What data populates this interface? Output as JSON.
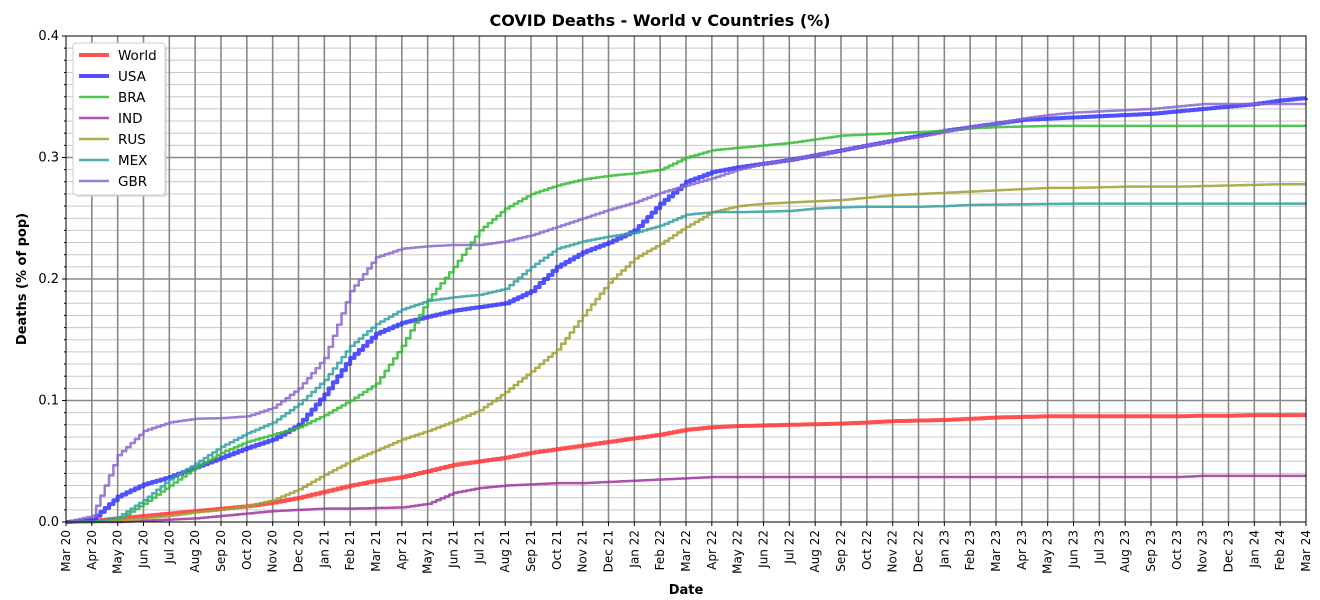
{
  "chart_data": {
    "type": "line",
    "title": "COVID Deaths - World v Countries (%)",
    "xlabel": "Date",
    "ylabel": "Deaths (% of pop)",
    "ylim": [
      0,
      0.4
    ],
    "yticks": [
      "0.0",
      "0.1",
      "0.2",
      "0.3",
      "0.4"
    ],
    "grid": true,
    "legend_position": "top-left",
    "x": [
      "Mar 20",
      "Apr 20",
      "May 20",
      "Jun 20",
      "Jul 20",
      "Aug 20",
      "Sep 20",
      "Oct 20",
      "Nov 20",
      "Dec 20",
      "Jan 21",
      "Feb 21",
      "Mar 21",
      "Apr 21",
      "May 21",
      "Jun 21",
      "Jul 21",
      "Aug 21",
      "Sep 21",
      "Oct 21",
      "Nov 21",
      "Dec 21",
      "Jan 22",
      "Feb 22",
      "Mar 22",
      "Apr 22",
      "May 22",
      "Jun 22",
      "Jul 22",
      "Aug 22",
      "Sep 22",
      "Oct 22",
      "Nov 22",
      "Dec 22",
      "Jan 23",
      "Feb 23",
      "Mar 23",
      "Apr 23",
      "May 23",
      "Jun 23",
      "Jul 23",
      "Aug 23",
      "Sep 23",
      "Oct 23",
      "Nov 23",
      "Dec 23",
      "Jan 24",
      "Feb 24",
      "Mar 24"
    ],
    "series": [
      {
        "name": "World",
        "color": "#ff3333",
        "width": 4,
        "values": [
          0,
          0.001,
          0.003,
          0.005,
          0.007,
          0.009,
          0.011,
          0.013,
          0.016,
          0.02,
          0.025,
          0.03,
          0.034,
          0.037,
          0.042,
          0.047,
          0.05,
          0.053,
          0.057,
          0.06,
          0.063,
          0.066,
          0.069,
          0.072,
          0.076,
          0.078,
          0.079,
          0.0795,
          0.08,
          0.0805,
          0.081,
          0.082,
          0.083,
          0.0835,
          0.084,
          0.085,
          0.086,
          0.0865,
          0.087,
          0.087,
          0.087,
          0.087,
          0.087,
          0.087,
          0.0875,
          0.0875,
          0.088,
          0.088,
          0.088
        ]
      },
      {
        "name": "USA",
        "color": "#3333ff",
        "width": 4,
        "values": [
          0,
          0.002,
          0.021,
          0.031,
          0.037,
          0.045,
          0.053,
          0.061,
          0.068,
          0.08,
          0.105,
          0.135,
          0.155,
          0.164,
          0.169,
          0.174,
          0.177,
          0.18,
          0.19,
          0.21,
          0.222,
          0.23,
          0.24,
          0.262,
          0.28,
          0.288,
          0.292,
          0.295,
          0.298,
          0.302,
          0.306,
          0.31,
          0.314,
          0.318,
          0.322,
          0.325,
          0.328,
          0.331,
          0.332,
          0.333,
          0.334,
          0.335,
          0.336,
          0.338,
          0.34,
          0.342,
          0.344,
          0.347,
          0.349
        ]
      },
      {
        "name": "BRA",
        "color": "#33bb33",
        "width": 2.5,
        "values": [
          0,
          0,
          0.002,
          0.015,
          0.03,
          0.045,
          0.057,
          0.066,
          0.072,
          0.078,
          0.088,
          0.1,
          0.114,
          0.145,
          0.183,
          0.21,
          0.24,
          0.258,
          0.27,
          0.277,
          0.282,
          0.285,
          0.287,
          0.29,
          0.3,
          0.306,
          0.308,
          0.31,
          0.312,
          0.315,
          0.318,
          0.319,
          0.32,
          0.321,
          0.322,
          0.324,
          0.325,
          0.3255,
          0.326,
          0.326,
          0.326,
          0.326,
          0.326,
          0.326,
          0.326,
          0.326,
          0.326,
          0.326,
          0.326
        ]
      },
      {
        "name": "IND",
        "color": "#a033a0",
        "width": 2.5,
        "values": [
          0,
          0,
          0,
          0.001,
          0.002,
          0.003,
          0.005,
          0.007,
          0.009,
          0.01,
          0.011,
          0.011,
          0.0115,
          0.012,
          0.015,
          0.024,
          0.028,
          0.03,
          0.031,
          0.032,
          0.032,
          0.033,
          0.034,
          0.035,
          0.036,
          0.037,
          0.037,
          0.037,
          0.037,
          0.037,
          0.037,
          0.037,
          0.037,
          0.037,
          0.037,
          0.037,
          0.037,
          0.037,
          0.037,
          0.037,
          0.037,
          0.037,
          0.037,
          0.037,
          0.038,
          0.038,
          0.038,
          0.038,
          0.038
        ]
      },
      {
        "name": "RUS",
        "color": "#a0a033",
        "width": 2.5,
        "values": [
          0,
          0,
          0.001,
          0.003,
          0.005,
          0.008,
          0.01,
          0.013,
          0.018,
          0.027,
          0.039,
          0.05,
          0.059,
          0.068,
          0.075,
          0.083,
          0.092,
          0.107,
          0.124,
          0.142,
          0.17,
          0.197,
          0.217,
          0.229,
          0.243,
          0.255,
          0.26,
          0.262,
          0.263,
          0.264,
          0.265,
          0.267,
          0.269,
          0.27,
          0.271,
          0.272,
          0.273,
          0.274,
          0.275,
          0.275,
          0.2755,
          0.276,
          0.276,
          0.276,
          0.2765,
          0.277,
          0.2775,
          0.278,
          0.278
        ]
      },
      {
        "name": "MEX",
        "color": "#33a0a0",
        "width": 2.5,
        "values": [
          0,
          0,
          0.004,
          0.018,
          0.035,
          0.048,
          0.062,
          0.073,
          0.082,
          0.097,
          0.117,
          0.145,
          0.163,
          0.175,
          0.182,
          0.185,
          0.187,
          0.192,
          0.21,
          0.225,
          0.231,
          0.235,
          0.238,
          0.244,
          0.253,
          0.255,
          0.255,
          0.2555,
          0.256,
          0.258,
          0.259,
          0.2595,
          0.2595,
          0.2595,
          0.26,
          0.261,
          0.2612,
          0.2615,
          0.2618,
          0.262,
          0.262,
          0.262,
          0.262,
          0.262,
          0.262,
          0.262,
          0.262,
          0.262,
          0.262
        ]
      },
      {
        "name": "GBR",
        "color": "#8866cc",
        "width": 2.5,
        "values": [
          0,
          0.005,
          0.055,
          0.075,
          0.082,
          0.085,
          0.0855,
          0.087,
          0.094,
          0.11,
          0.135,
          0.19,
          0.218,
          0.225,
          0.227,
          0.228,
          0.228,
          0.231,
          0.236,
          0.243,
          0.25,
          0.257,
          0.263,
          0.271,
          0.277,
          0.283,
          0.29,
          0.295,
          0.298,
          0.302,
          0.306,
          0.31,
          0.314,
          0.317,
          0.321,
          0.325,
          0.328,
          0.332,
          0.335,
          0.337,
          0.338,
          0.339,
          0.34,
          0.342,
          0.344,
          0.344,
          0.344,
          0.344,
          0.344
        ]
      }
    ]
  }
}
